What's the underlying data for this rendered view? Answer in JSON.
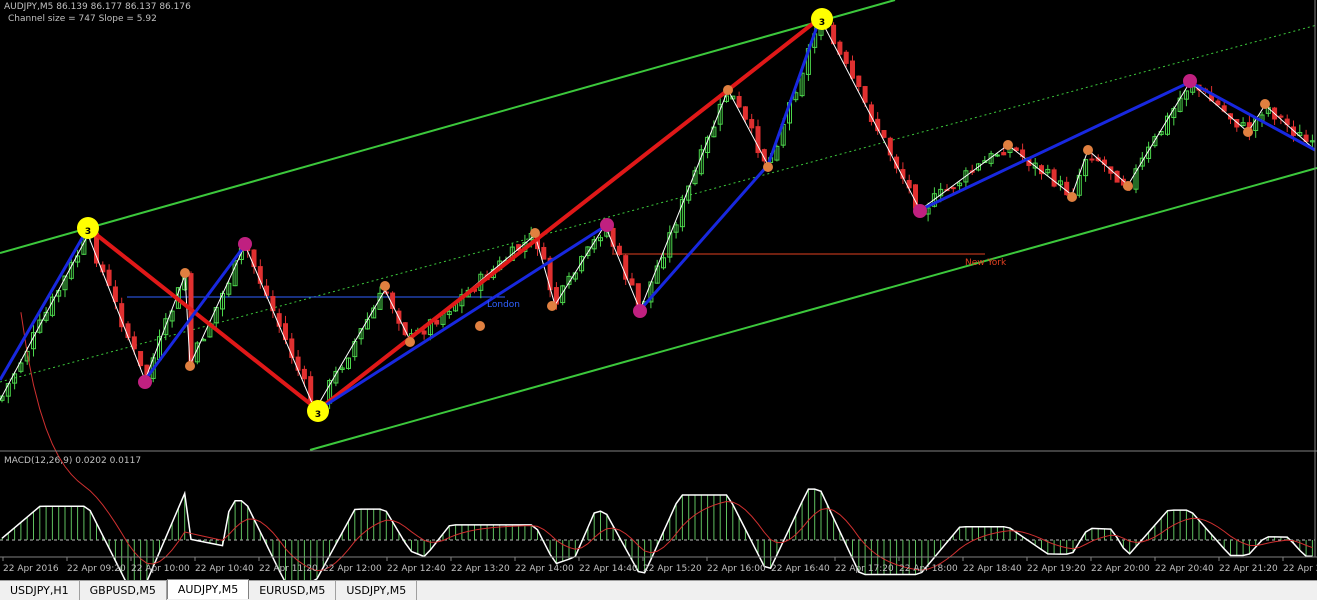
{
  "header": {
    "symbol_line": "AUDJPY,M5  86.139 86.177 86.137 86.176",
    "channel_line": "Channel size = 747 Slope = 5.92"
  },
  "sessions": {
    "london": "London",
    "new_york": "New York"
  },
  "markers": [
    "3",
    "3",
    "3"
  ],
  "indicator": {
    "macd_label": "MACD(12,26,9) 0.0202 0.0117"
  },
  "time_axis": {
    "labels": [
      "22 Apr 2016",
      "22 Apr 09:20",
      "22 Apr 10:00",
      "22 Apr 10:40",
      "22 Apr 11:20",
      "22 Apr 12:00",
      "22 Apr 12:40",
      "22 Apr 13:20",
      "22 Apr 14:00",
      "22 Apr 14:40",
      "22 Apr 15:20",
      "22 Apr 16:00",
      "22 Apr 16:40",
      "22 Apr 17:20",
      "22 Apr 18:00",
      "22 Apr 18:40",
      "22 Apr 19:20",
      "22 Apr 20:00",
      "22 Apr 20:40",
      "22 Apr 21:20",
      "22 Apr 22:00"
    ]
  },
  "tabs": [
    "USDJPY,H1",
    "GBPUSD,M5",
    "AUDJPY,M5",
    "EURUSD,M5",
    "USDJPY,M5"
  ]
}
